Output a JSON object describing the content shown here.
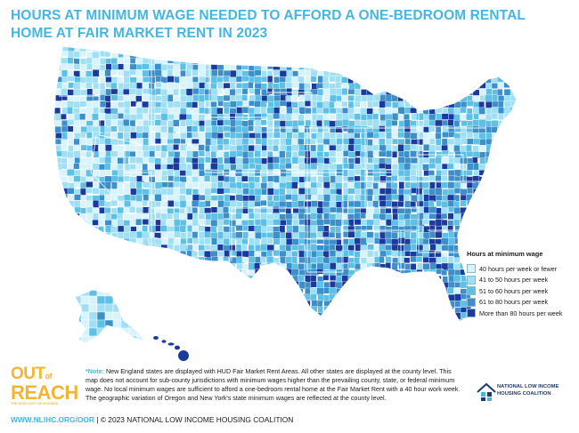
{
  "title": {
    "line1": "HOURS AT MINIMUM WAGE NEEDED TO AFFORD A ONE-BEDROOM RENTAL",
    "line2": "HOME AT FAIR MARKET RENT IN 2023"
  },
  "legend": {
    "title": "Hours at minimum wage",
    "items": [
      {
        "label": "40 hours per week or fewer",
        "color": "#d8f3fb"
      },
      {
        "label": "41 to 50 hours per week",
        "color": "#9fe0f4"
      },
      {
        "label": "51 to 60 hours per week",
        "color": "#5ec0e4"
      },
      {
        "label": "61 to 80 hours per week",
        "color": "#3d8fc9"
      },
      {
        "label": "More than 80 hours per week",
        "color": "#1b3a9e"
      }
    ]
  },
  "note": {
    "label": "*Note:",
    "text": " New England states are displayed with HUD Fair Market Rent Areas. All other states are displayed at the county level. This map does not account for sub-county jurisdictions with minimum wages higher than the prevailing county, state, or federal minimum wage. No local minimum wages are sufficient to afford a one-bedroom rental home at the Fair Market Rent with a 40 hour work week. The geographic variation of Oregon and New York's state minimum wages are reflected at the county level."
  },
  "logo": {
    "line1": "OUT",
    "of": "of",
    "line2": "REACH",
    "subtitle": "THE HIGH COST OF HOUSING"
  },
  "footer": {
    "url": "WWW.NLIHC.ORG/OOR",
    "copyright": " | © 2023 NATIONAL LOW INCOME HOUSING COALITION"
  },
  "nlihc": {
    "line1": "NATIONAL LOW INCOME",
    "line2": "HOUSING COALITION"
  }
}
